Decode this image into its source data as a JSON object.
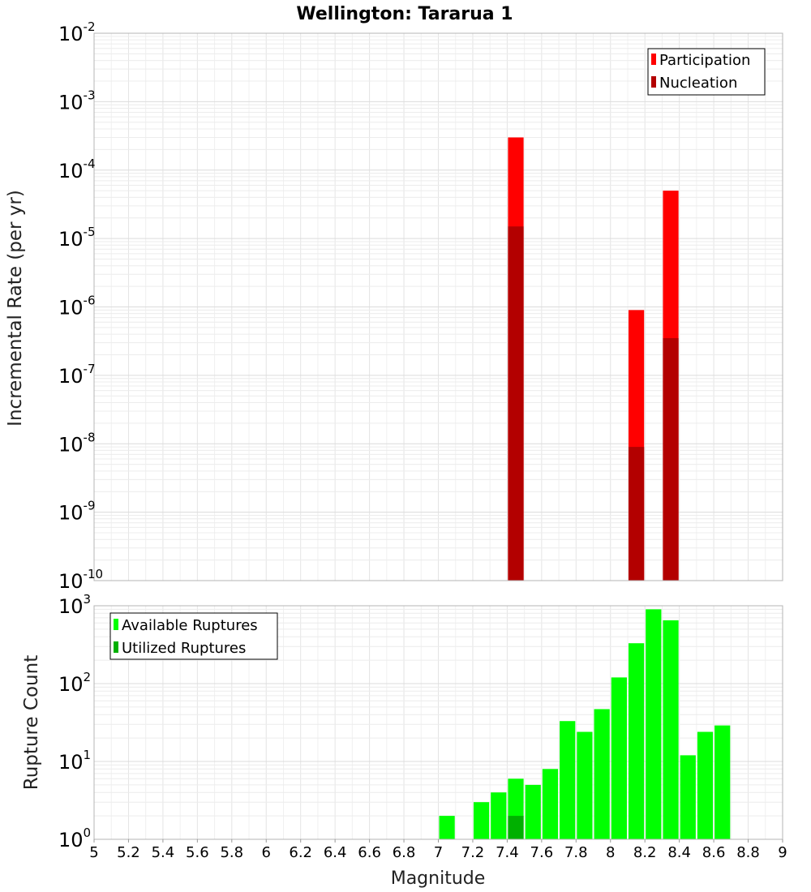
{
  "chart_data": [
    {
      "type": "bar",
      "title": "Wellington: Tararua 1",
      "xlabel": "",
      "ylabel": "Incremental Rate (per yr)",
      "yscale": "log",
      "xlim": [
        5,
        9
      ],
      "ylim_exponents": [
        -10,
        -2
      ],
      "bar_width": 0.1,
      "legend_position": "top-right",
      "series": [
        {
          "name": "Participation",
          "color": "#ff0000",
          "x": [
            7.45,
            8.15,
            8.35
          ],
          "values": [
            0.0003,
            9e-07,
            5e-05
          ]
        },
        {
          "name": "Nucleation",
          "color": "#b30000",
          "x": [
            7.45,
            8.15,
            8.35
          ],
          "values": [
            1.5e-05,
            9e-09,
            3.5e-07
          ]
        }
      ]
    },
    {
      "type": "bar",
      "title": "",
      "xlabel": "Magnitude",
      "ylabel": "Rupture Count",
      "yscale": "log",
      "xlim": [
        5,
        9
      ],
      "ylim_exponents": [
        0,
        3
      ],
      "bar_width": 0.1,
      "legend_position": "top-left",
      "xticks": [
        "5",
        "5.2",
        "5.4",
        "5.6",
        "5.8",
        "6",
        "6.2",
        "6.4",
        "6.6",
        "6.8",
        "7",
        "7.2",
        "7.4",
        "7.6",
        "7.8",
        "8",
        "8.2",
        "8.4",
        "8.6",
        "8.8",
        "9"
      ],
      "series": [
        {
          "name": "Available Ruptures",
          "color": "#00ff00",
          "x": [
            6.15,
            6.85,
            7.05,
            7.25,
            7.35,
            7.45,
            7.55,
            7.65,
            7.75,
            7.85,
            7.95,
            8.05,
            8.15,
            8.25,
            8.35,
            8.45,
            8.55,
            8.65
          ],
          "values": [
            1,
            1,
            2,
            3,
            4,
            6,
            5,
            8,
            33,
            24,
            47,
            120,
            330,
            900,
            650,
            12,
            24,
            29
          ]
        },
        {
          "name": "Utilized Ruptures",
          "color": "#00b000",
          "x": [
            7.45,
            8.15,
            8.35
          ],
          "values": [
            2,
            1,
            1
          ]
        }
      ]
    }
  ]
}
